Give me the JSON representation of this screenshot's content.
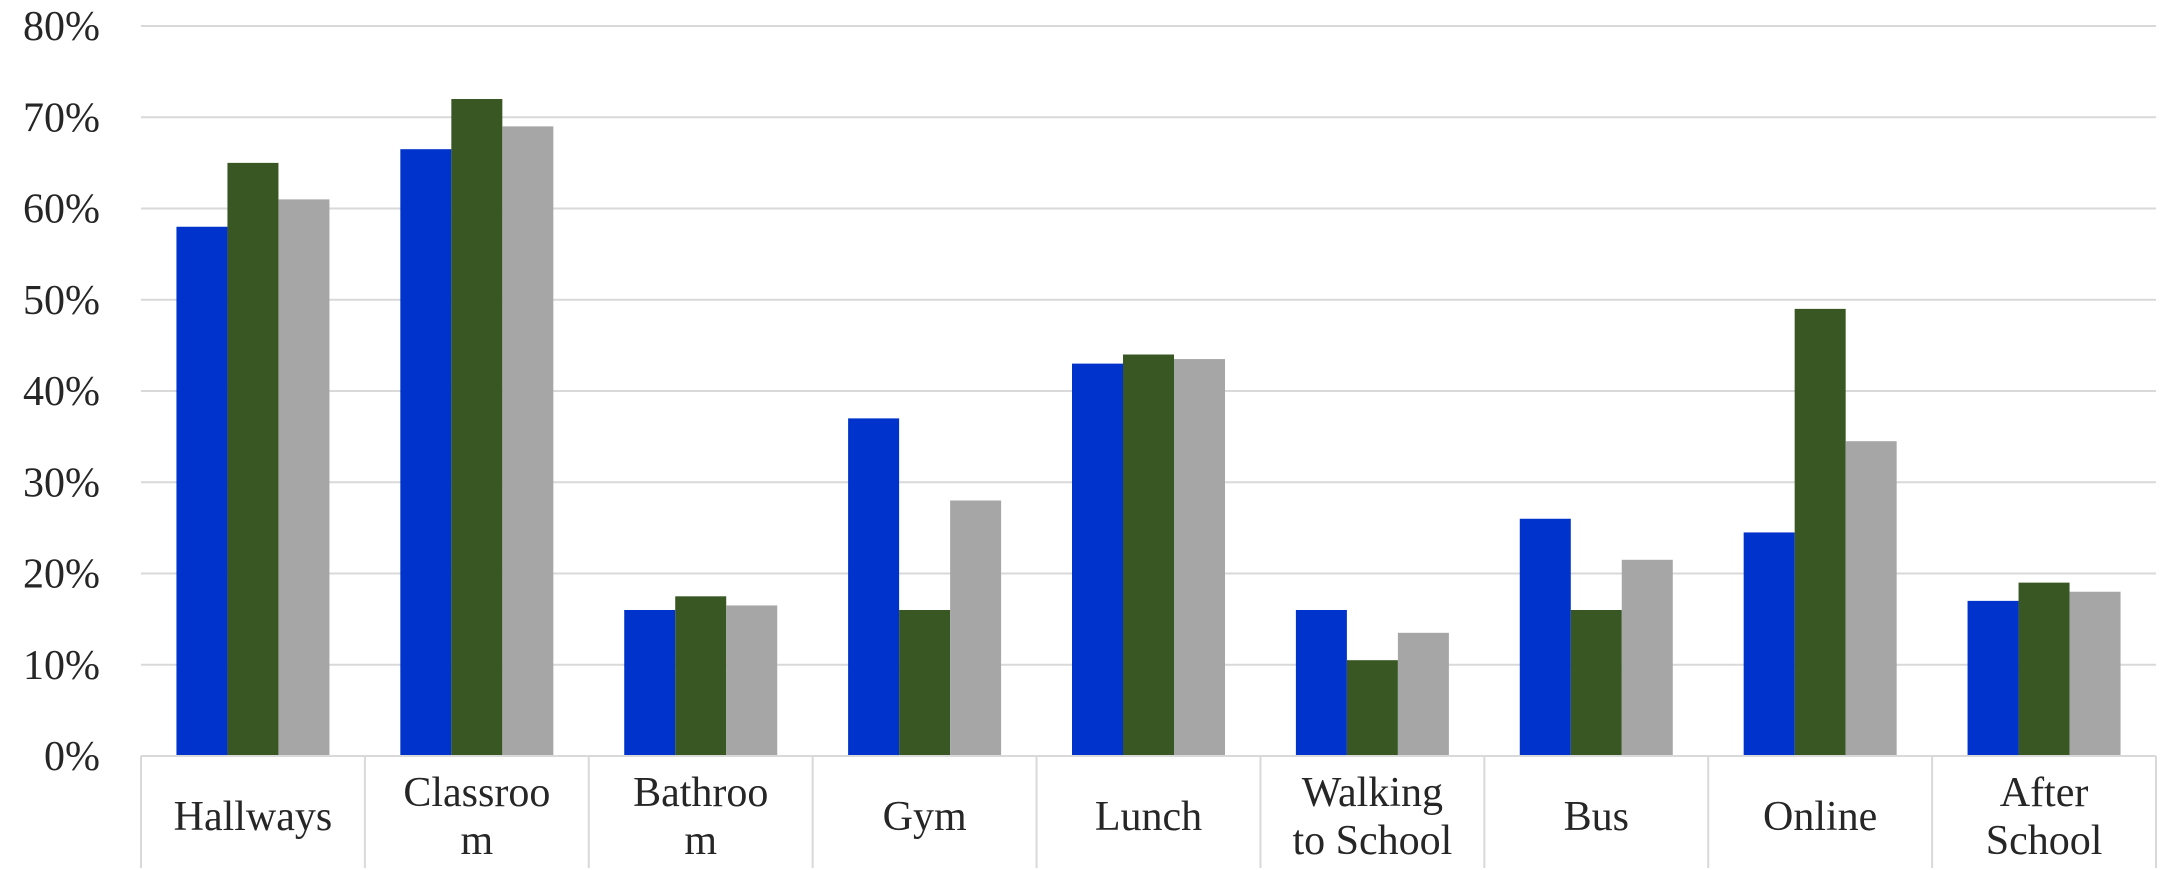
{
  "chart_data": {
    "type": "bar",
    "categories": [
      [
        "Hallways"
      ],
      [
        "Classroo",
        "m"
      ],
      [
        "Bathroo",
        "m"
      ],
      [
        "Gym"
      ],
      [
        "Lunch"
      ],
      [
        "Walking",
        "to School"
      ],
      [
        "Bus"
      ],
      [
        "Online"
      ],
      [
        "After",
        "School"
      ]
    ],
    "series": [
      {
        "values": [
          58,
          66.5,
          16,
          37,
          43,
          16,
          26,
          24.5,
          17
        ],
        "color": "#0033cc"
      },
      {
        "values": [
          65,
          72,
          17.5,
          16,
          44,
          10.5,
          16,
          49,
          19
        ],
        "color": "#385723"
      },
      {
        "values": [
          61,
          69,
          16.5,
          28,
          43.5,
          13.5,
          21.5,
          34.5,
          18
        ],
        "color": "#a6a6a6"
      }
    ],
    "ylim": [
      0,
      80
    ],
    "yticks": [
      0,
      10,
      20,
      30,
      40,
      50,
      60,
      70,
      80
    ],
    "ytick_suffix": "%",
    "grid": true,
    "legend": "none"
  }
}
